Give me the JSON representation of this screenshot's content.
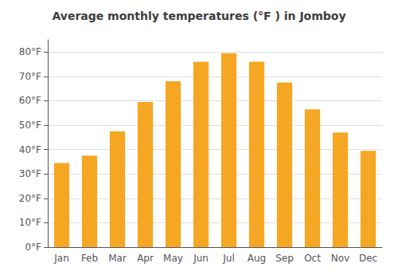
{
  "chart_data": {
    "type": "bar",
    "title": "Average monthly temperatures (°F ) in Jomboy",
    "categories": [
      "Jan",
      "Feb",
      "Mar",
      "Apr",
      "May",
      "Jun",
      "Jul",
      "Aug",
      "Sep",
      "Oct",
      "Nov",
      "Dec"
    ],
    "values": [
      34.5,
      37.5,
      47.5,
      59.5,
      68.0,
      76.0,
      79.5,
      76.0,
      67.5,
      56.5,
      47.0,
      39.5
    ],
    "color": "#F5A623",
    "ylim": [
      0,
      85
    ],
    "yticks": [
      {
        "value": 0,
        "label": "0°F"
      },
      {
        "value": 10,
        "label": "10°F"
      },
      {
        "value": 20,
        "label": "20°F"
      },
      {
        "value": 30,
        "label": "30°F"
      },
      {
        "value": 40,
        "label": "40°F"
      },
      {
        "value": 50,
        "label": "50°F"
      },
      {
        "value": 60,
        "label": "60°F"
      },
      {
        "value": 70,
        "label": "70°F"
      },
      {
        "value": 80,
        "label": "80°F"
      }
    ],
    "grid": true
  }
}
